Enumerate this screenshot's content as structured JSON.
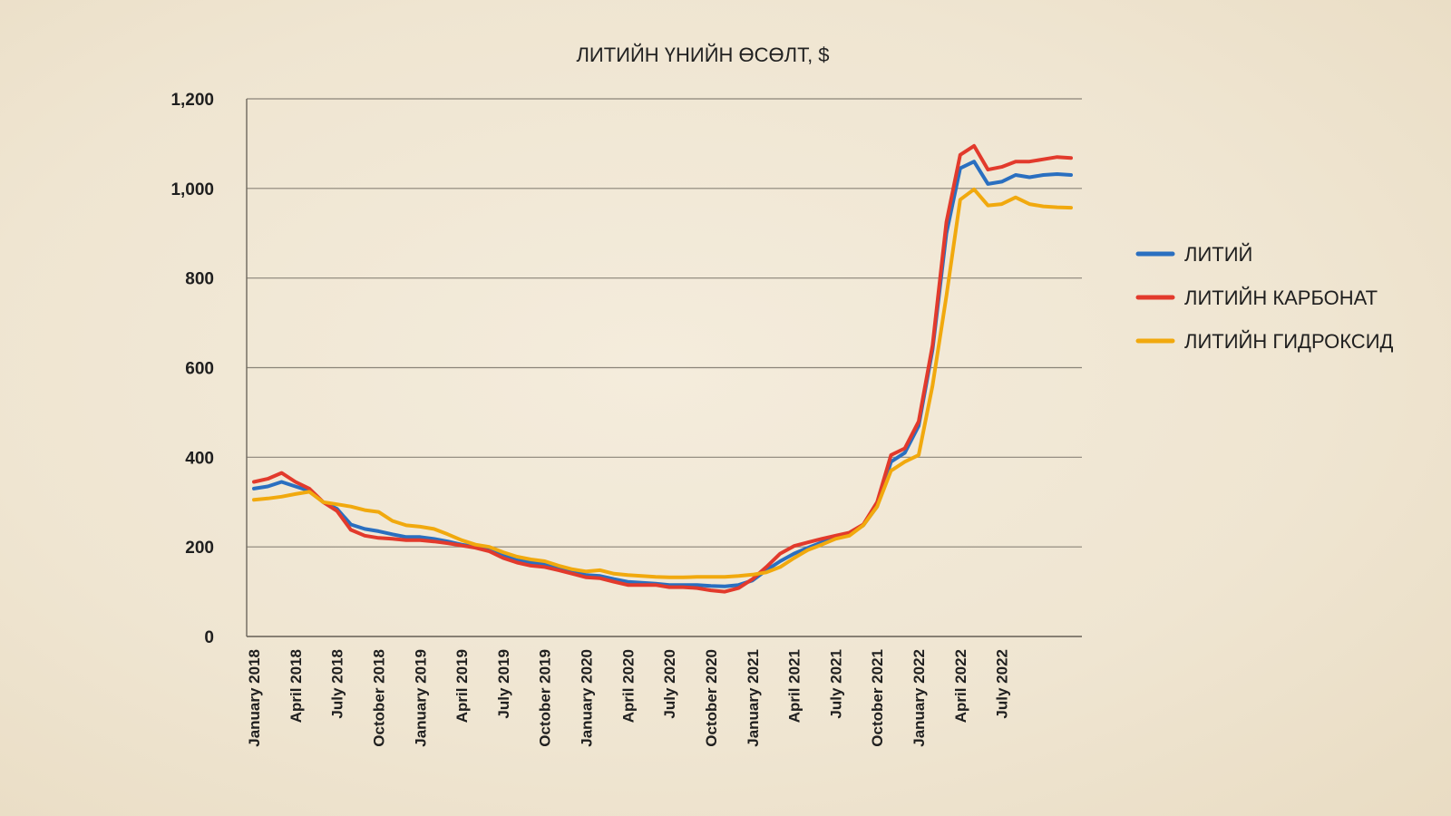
{
  "chart_data": {
    "type": "line",
    "title": "ЛИТИЙН ҮНИЙН ӨСӨЛТ, $",
    "xlabel": "",
    "ylabel": "",
    "ylim": [
      0,
      1200
    ],
    "yticks": [
      0,
      200,
      400,
      600,
      800,
      1000,
      1200
    ],
    "ytick_labels": [
      "0",
      "200",
      "400",
      "600",
      "800",
      "1,000",
      "1,200"
    ],
    "grid": true,
    "legend_position": "right",
    "x_count": 60,
    "x_tick_indices": [
      0,
      3,
      6,
      9,
      12,
      15,
      18,
      21,
      24,
      27,
      30,
      33,
      36,
      39,
      42,
      45,
      48,
      51,
      54
    ],
    "x_tick_labels": [
      "January 2018",
      "April 2018",
      "July 2018",
      "October 2018",
      "January 2019",
      "April 2019",
      "July 2019",
      "October 2019",
      "January 2020",
      "April 2020",
      "July 2020",
      "October 2020",
      "January 2021",
      "April 2021",
      "July 2021",
      "October 2021",
      "January 2022",
      "April 2022",
      "July 2022"
    ],
    "series": [
      {
        "name": "ЛИТИЙ",
        "color": "#2a6fc0",
        "values": [
          330,
          335,
          345,
          335,
          325,
          300,
          285,
          250,
          240,
          235,
          228,
          222,
          222,
          218,
          212,
          205,
          200,
          195,
          180,
          170,
          165,
          162,
          152,
          145,
          137,
          135,
          128,
          122,
          120,
          118,
          115,
          115,
          115,
          113,
          112,
          115,
          125,
          148,
          168,
          185,
          198,
          210,
          222,
          228,
          248,
          290,
          390,
          410,
          470,
          640,
          900,
          1045,
          1060,
          1010,
          1015,
          1030,
          1025,
          1030,
          1032,
          1030
        ]
      },
      {
        "name": "ЛИТИЙН КАРБОНАТ",
        "color": "#e23a2c",
        "values": [
          345,
          352,
          365,
          345,
          330,
          300,
          280,
          238,
          225,
          220,
          218,
          215,
          215,
          212,
          208,
          203,
          198,
          190,
          175,
          165,
          158,
          155,
          148,
          140,
          132,
          130,
          122,
          115,
          115,
          115,
          110,
          110,
          108,
          103,
          100,
          108,
          128,
          155,
          185,
          202,
          210,
          218,
          225,
          232,
          250,
          300,
          405,
          420,
          480,
          650,
          925,
          1075,
          1095,
          1042,
          1048,
          1060,
          1060,
          1065,
          1070,
          1068
        ]
      },
      {
        "name": "ЛИТИЙН ГИДРОКСИД",
        "color": "#f1a90e",
        "values": [
          305,
          308,
          312,
          318,
          323,
          300,
          295,
          290,
          282,
          278,
          258,
          248,
          245,
          240,
          228,
          215,
          205,
          200,
          188,
          178,
          172,
          168,
          158,
          150,
          145,
          148,
          140,
          137,
          135,
          133,
          132,
          132,
          133,
          133,
          133,
          135,
          138,
          143,
          155,
          175,
          193,
          205,
          218,
          225,
          248,
          290,
          370,
          390,
          405,
          560,
          760,
          975,
          998,
          962,
          965,
          980,
          965,
          960,
          958,
          957
        ]
      }
    ]
  }
}
